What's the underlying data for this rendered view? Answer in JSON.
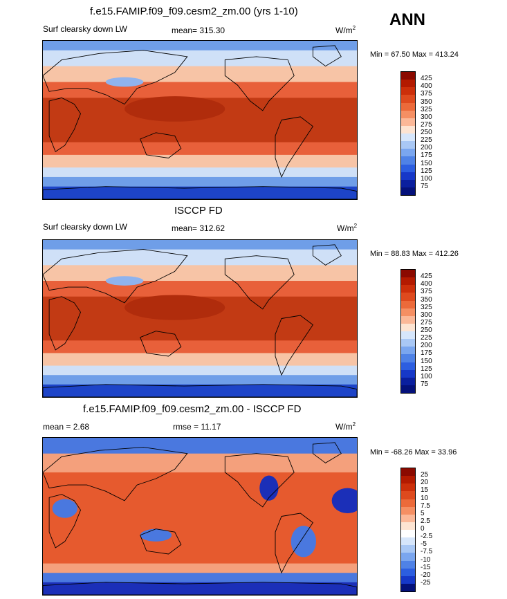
{
  "season": "ANN",
  "panels": [
    {
      "title": "f.e15.FAMIP.f09_f09.cesm2_zm.00 (yrs 1-10)",
      "left_label": "Surf clearsky down LW",
      "stat_label": "mean= 315.30",
      "units_base": "W/m",
      "units_sup": "2",
      "minmax": "Min =  67.50 Max = 413.24",
      "colorbar": {
        "labels": [
          "425",
          "400",
          "375",
          "350",
          "325",
          "300",
          "275",
          "250",
          "225",
          "200",
          "175",
          "150",
          "125",
          "100",
          "75"
        ],
        "colors": [
          "#8b0a00",
          "#b31a00",
          "#cc2f0a",
          "#de4a1e",
          "#ec6a3a",
          "#f58f63",
          "#fbb898",
          "#fde4d2",
          "#d6e6fb",
          "#a9c8f5",
          "#7aa6ef",
          "#4f82e6",
          "#2c5ee0",
          "#1638c8",
          "#0a1f9e",
          "#04117a"
        ]
      }
    },
    {
      "title": "ISCCP FD",
      "left_label": "Surf clearsky down LW",
      "stat_label": "mean= 312.62",
      "units_base": "W/m",
      "units_sup": "2",
      "minmax": "Min =  88.83 Max = 412.26",
      "colorbar": {
        "labels": [
          "425",
          "400",
          "375",
          "350",
          "325",
          "300",
          "275",
          "250",
          "225",
          "200",
          "175",
          "150",
          "125",
          "100",
          "75"
        ],
        "colors": [
          "#8b0a00",
          "#b31a00",
          "#cc2f0a",
          "#de4a1e",
          "#ec6a3a",
          "#f58f63",
          "#fbb898",
          "#fde4d2",
          "#d6e6fb",
          "#a9c8f5",
          "#7aa6ef",
          "#4f82e6",
          "#2c5ee0",
          "#1638c8",
          "#0a1f9e",
          "#04117a"
        ]
      }
    },
    {
      "title": "f.e15.FAMIP.f09_f09.cesm2_zm.00 - ISCCP FD",
      "left_label": "mean =   2.68",
      "stat_label": "rmse =  11.17",
      "units_base": "W/m",
      "units_sup": "2",
      "minmax": "Min = -68.26 Max =  33.96",
      "colorbar": {
        "labels": [
          "25",
          "20",
          "15",
          "10",
          "7.5",
          "5",
          "2.5",
          "0",
          "-2.5",
          "-5",
          "-7.5",
          "-10",
          "-15",
          "-20",
          "-25"
        ],
        "colors": [
          "#8b0a00",
          "#b31a00",
          "#cc2f0a",
          "#de4a1e",
          "#ec6a3a",
          "#f58f63",
          "#fbb898",
          "#fde4d2",
          "#ffffff",
          "#d6e6fb",
          "#a9c8f5",
          "#7aa6ef",
          "#4f82e6",
          "#2c5ee0",
          "#1638c8",
          "#04117a"
        ]
      }
    }
  ],
  "map_colors": {
    "polar": "#1d44c8",
    "subpolar": "#6f9ee8",
    "midlat": "#cfe0f7",
    "transition": "#f7c4a6",
    "subtropic": "#e8603a",
    "tropic": "#c23a14",
    "warmpool": "#b02c0c",
    "land_cold": "#8fb3ee",
    "diff_pos": "#e65a2e",
    "diff_pos_light": "#f4a07c",
    "diff_neg": "#4a78df",
    "diff_neg_dark": "#1b2fb8",
    "coast": "#000000"
  }
}
